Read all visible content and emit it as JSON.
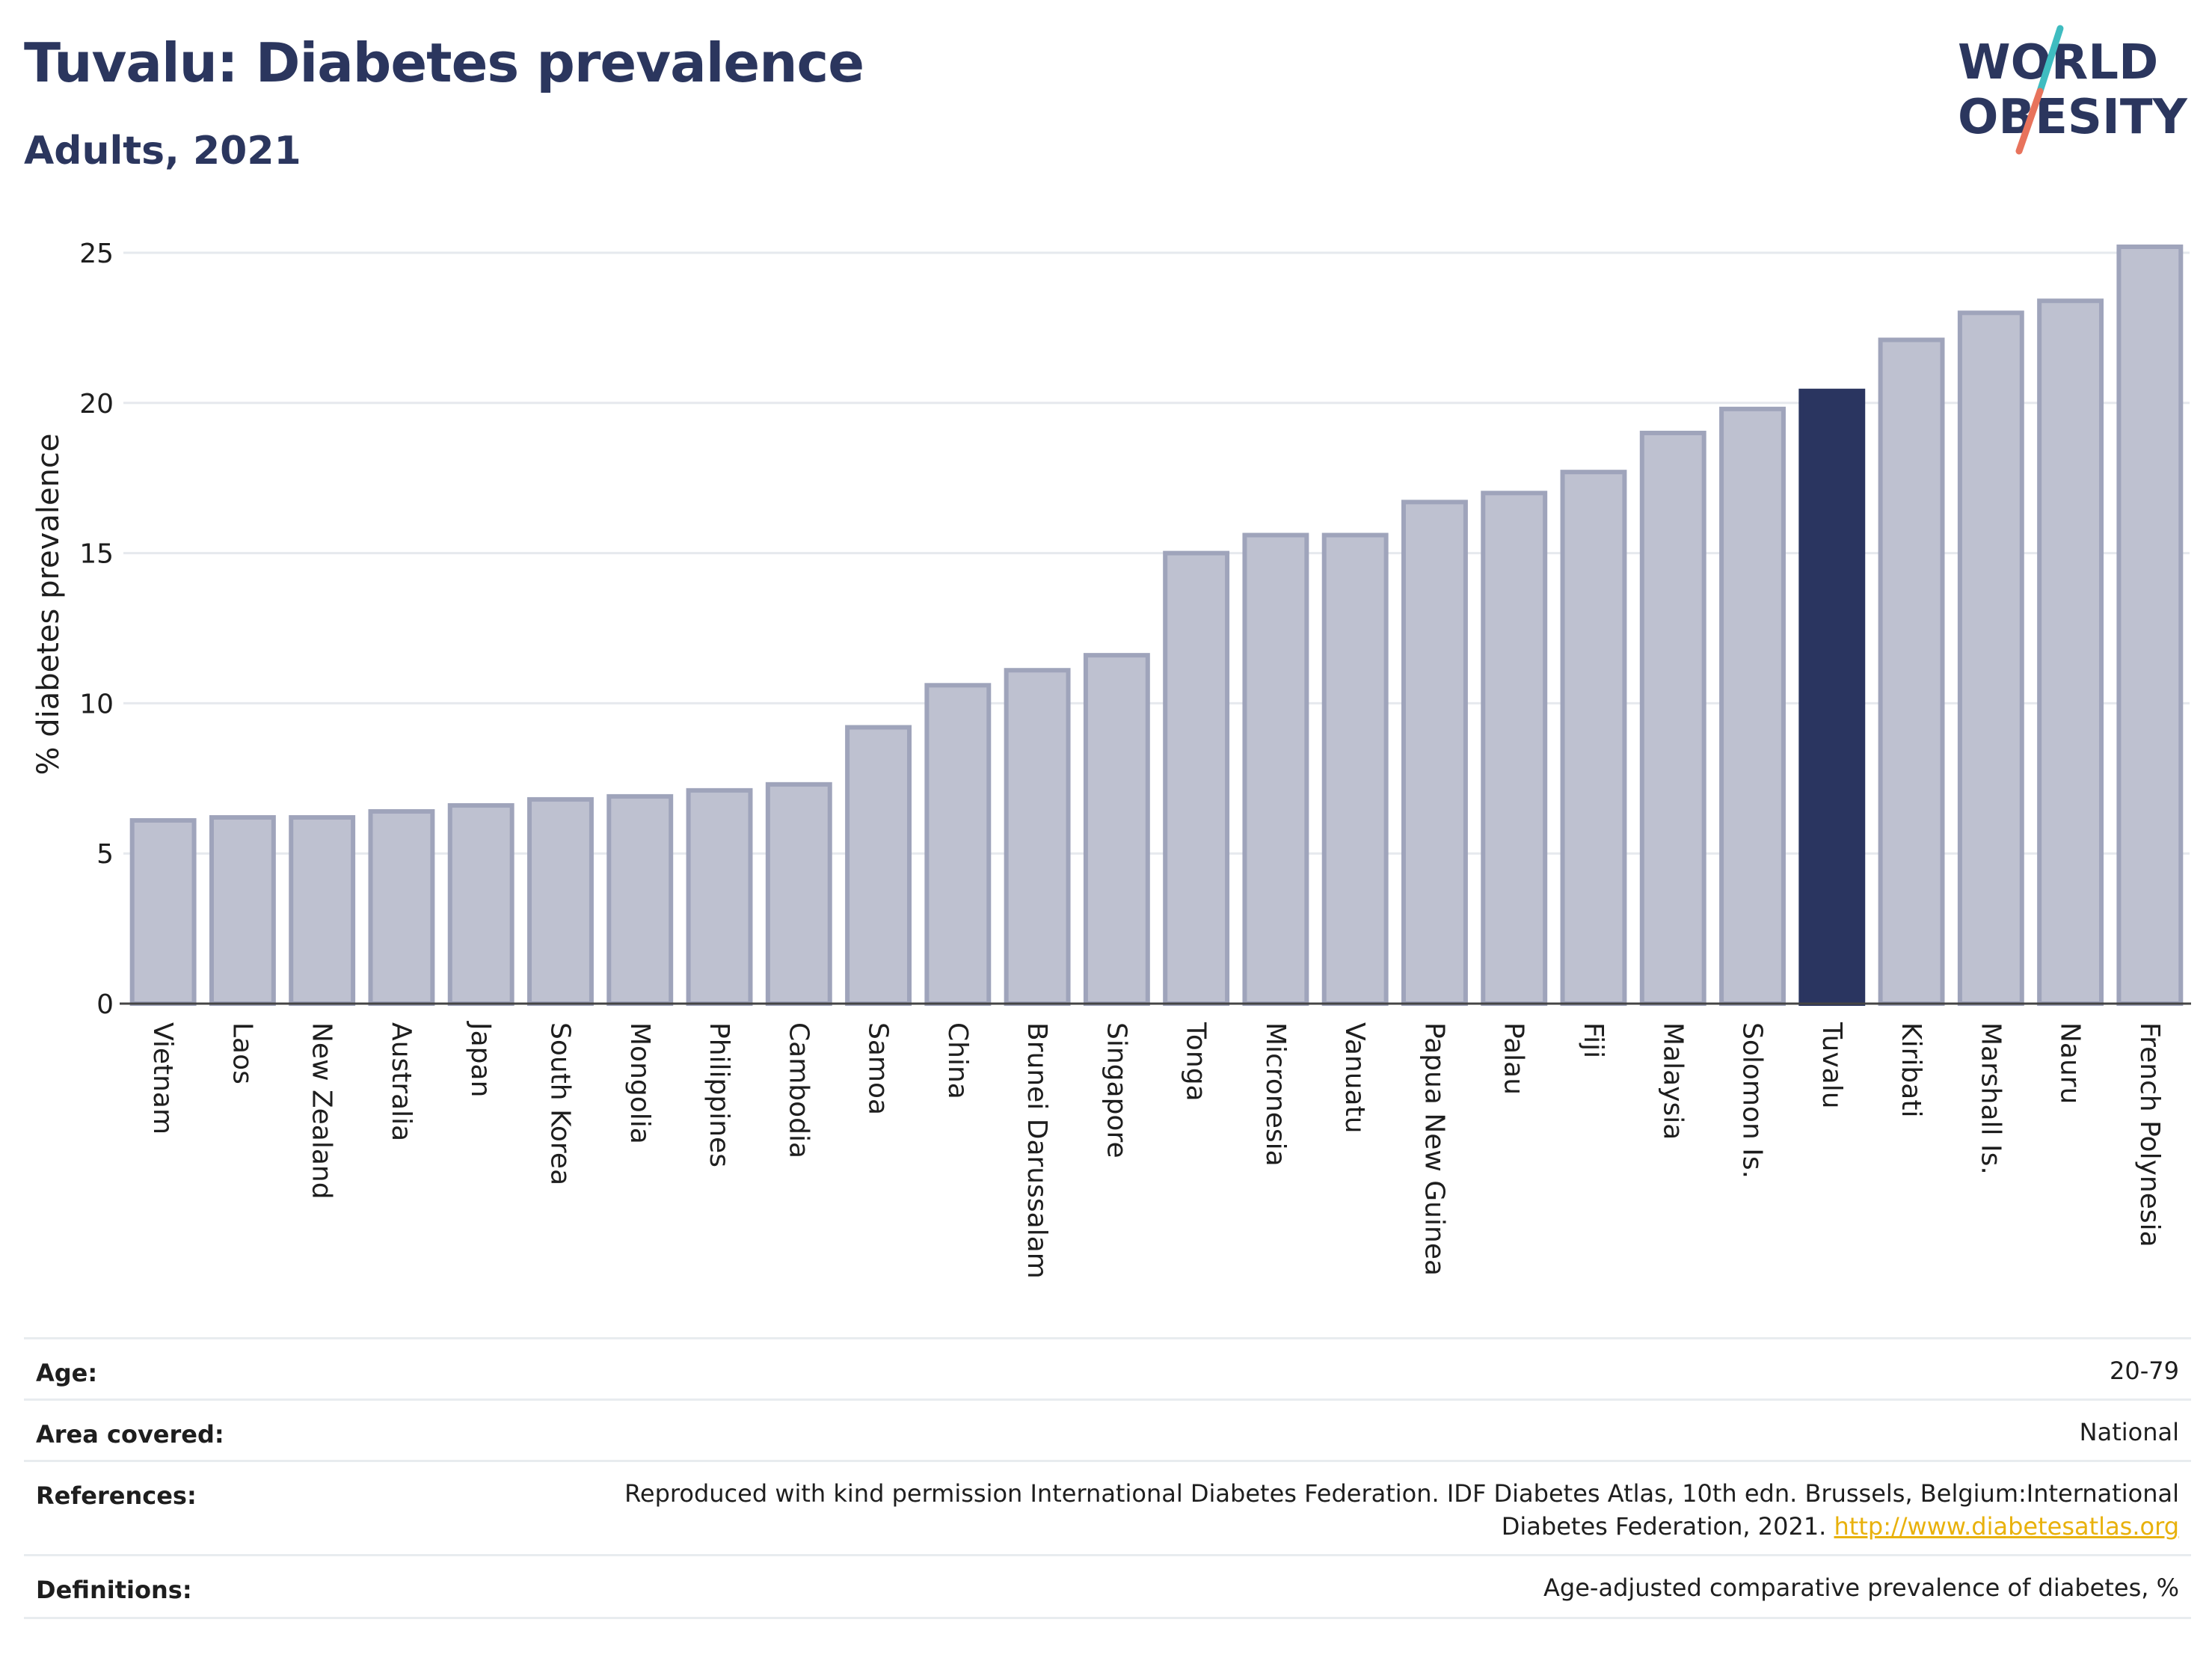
{
  "header": {
    "title": "Tuvalu: Diabetes prevalence",
    "subtitle": "Adults, 2021"
  },
  "logo": {
    "line1": "WORLD",
    "line2": "OBESITY"
  },
  "colors": {
    "highlight_bar": "#2a3560",
    "default_bar": "#bec1d0",
    "default_bar_stroke": "#9fa4bb",
    "title": "#2b365e",
    "logo_teal": "#3fbcc0",
    "logo_coral": "#e8735c",
    "link": "#e8b10c"
  },
  "chart_data": {
    "type": "bar",
    "title": "Tuvalu: Diabetes prevalence",
    "subtitle": "Adults, 2021",
    "xlabel": "",
    "ylabel": "% diabetes prevalence",
    "ylim": [
      0,
      26
    ],
    "yticks": [
      0,
      5,
      10,
      15,
      20,
      25
    ],
    "grid": true,
    "highlight": "Tuvalu",
    "categories": [
      "Vietnam",
      "Laos",
      "New Zealand",
      "Australia",
      "Japan",
      "South Korea",
      "Mongolia",
      "Philippines",
      "Cambodia",
      "Samoa",
      "China",
      "Brunei Darussalam",
      "Singapore",
      "Tonga",
      "Micronesia",
      "Vanuatu",
      "Papua New Guinea",
      "Palau",
      "Fiji",
      "Malaysia",
      "Solomon Is.",
      "Tuvalu",
      "Kiribati",
      "Marshall Is.",
      "Nauru",
      "French Polynesia"
    ],
    "values": [
      6.1,
      6.2,
      6.2,
      6.4,
      6.6,
      6.8,
      6.9,
      7.1,
      7.3,
      9.2,
      10.6,
      11.1,
      11.6,
      15.0,
      15.6,
      15.6,
      16.7,
      17.0,
      17.7,
      19.0,
      19.8,
      20.4,
      22.1,
      23.0,
      23.4,
      25.2
    ]
  },
  "metadata": {
    "age_label": "Age:",
    "age_value": "20-79",
    "area_label": "Area covered:",
    "area_value": "National",
    "references_label": "References:",
    "references_line1": "Reproduced with kind permission International Diabetes Federation.  IDF Diabetes Atlas, 10th edn. Brussels, Belgium:International",
    "references_line2": "Diabetes Federation, 2021.",
    "references_link": "http://www.diabetesatlas.org",
    "definitions_label": "Definitions:",
    "definitions_value": "Age-adjusted comparative prevalence of diabetes, %"
  }
}
